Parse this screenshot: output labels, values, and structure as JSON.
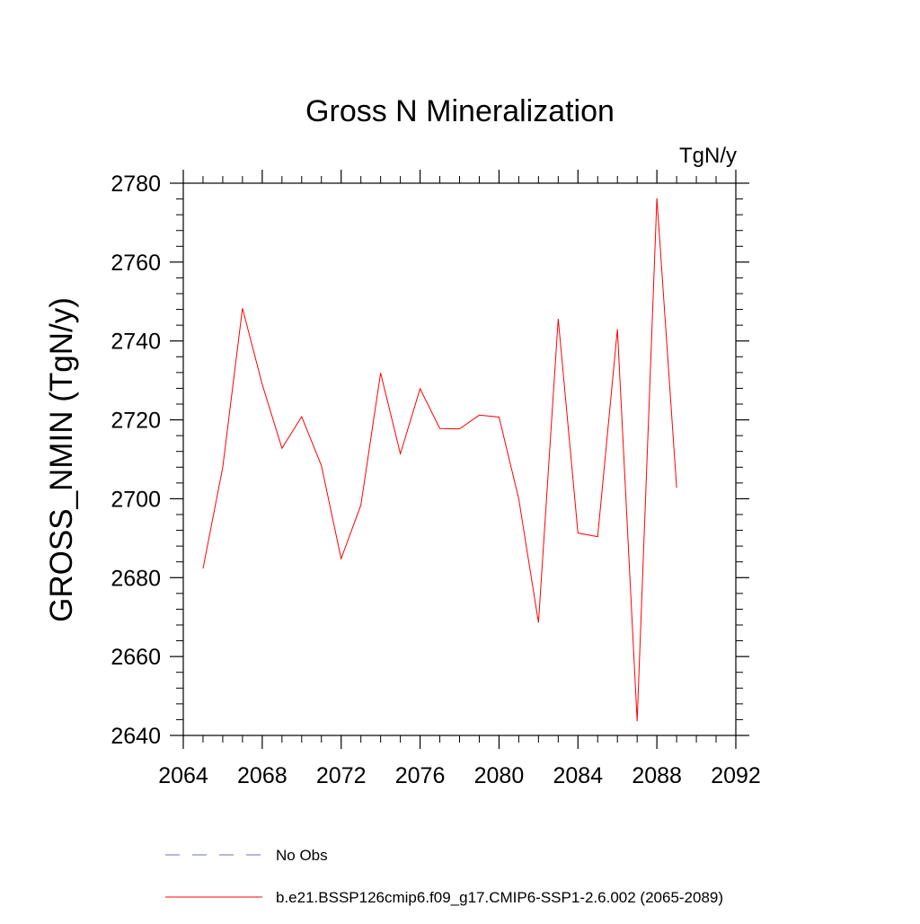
{
  "chart_data": {
    "type": "line",
    "title": "Gross N Mineralization",
    "units_label": "TgN/y",
    "ylabel": "GROSS_NMIN  (TgN/y)",
    "xlabel": "",
    "xlim": [
      2064,
      2092
    ],
    "ylim": [
      2640,
      2780
    ],
    "x_ticks": [
      2064,
      2068,
      2072,
      2076,
      2080,
      2084,
      2088,
      2092
    ],
    "y_ticks": [
      2640,
      2660,
      2680,
      2700,
      2720,
      2740,
      2760,
      2780
    ],
    "grid": false,
    "legend_position": "bottom",
    "series": [
      {
        "name": "No Obs",
        "color": "#6f6fb0",
        "style": "dashed",
        "x": [],
        "values": []
      },
      {
        "name": "b.e21.BSSP126cmip6.f09_g17.CMIP6-SSP1-2.6.002 (2065-2089)",
        "color": "#ff0000",
        "style": "solid",
        "x": [
          2065,
          2066,
          2067,
          2068,
          2069,
          2070,
          2071,
          2072,
          2073,
          2074,
          2075,
          2076,
          2077,
          2078,
          2079,
          2080,
          2081,
          2082,
          2083,
          2084,
          2085,
          2086,
          2087,
          2088,
          2089
        ],
        "values": [
          2682.3,
          2708.0,
          2748.3,
          2729.0,
          2712.8,
          2720.8,
          2708.4,
          2684.8,
          2698.4,
          2731.9,
          2711.4,
          2727.9,
          2717.8,
          2717.7,
          2721.2,
          2720.7,
          2700.0,
          2668.6,
          2745.6,
          2691.3,
          2690.4,
          2743.0,
          2643.6,
          2776.2,
          2702.8
        ]
      }
    ]
  }
}
